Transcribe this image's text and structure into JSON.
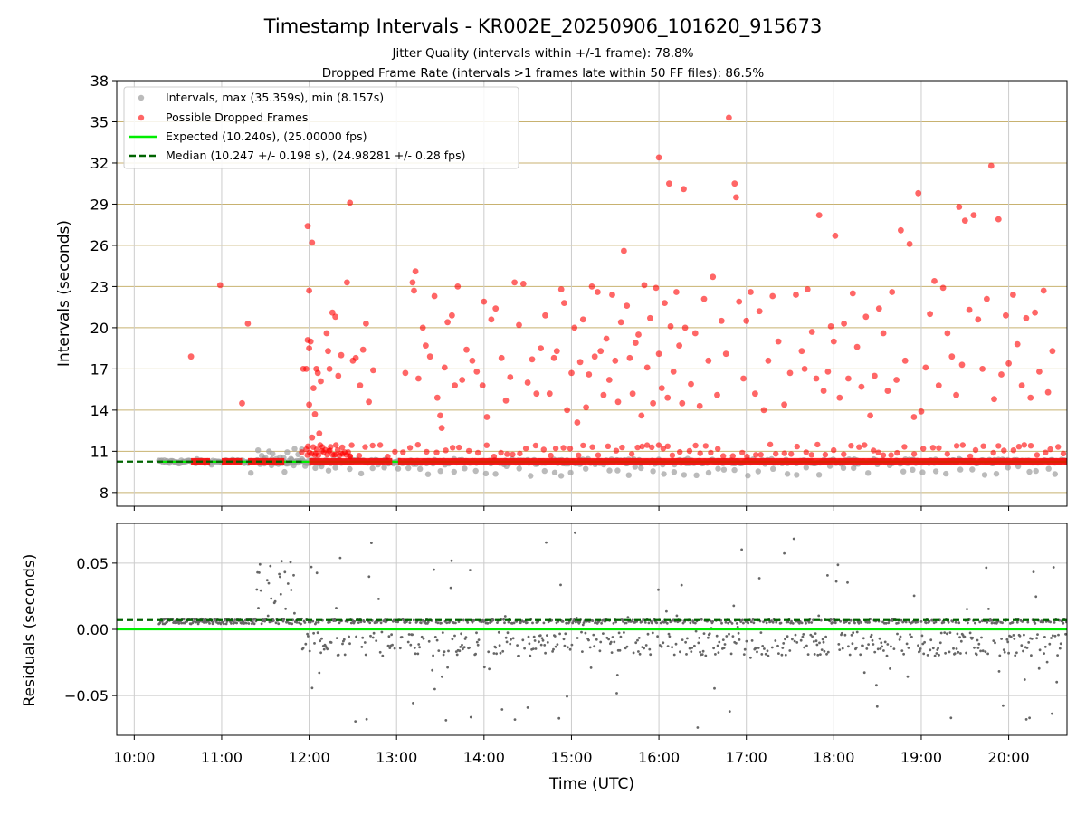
{
  "title": "Timestamp Intervals - KR002E_20250906_101620_915673",
  "subtitle_1": "Jitter Quality (intervals within +/-1 frame): 78.8%",
  "subtitle_2": "Dropped Frame Rate (intervals >1 frames late within 50 FF files): 86.5%",
  "colors": {
    "interval_points": "#9e9e9e",
    "dropped_points": "#ff0000",
    "expected_line": "#00ee00",
    "median_line": "#006400",
    "residual_points": "#666666",
    "top_grid": "#c8b270",
    "bottom_grid": "#cccccc"
  },
  "chart_data": [
    {
      "type": "scatter",
      "panel": "intervals",
      "ylabel": "Intervals (seconds)",
      "ylim": [
        7,
        38
      ],
      "xlim": [
        "09:48",
        "20:40"
      ],
      "yticks": [
        8,
        11,
        14,
        17,
        20,
        23,
        26,
        29,
        32,
        35,
        38
      ],
      "grid": "horizontal",
      "legend": {
        "placement": "top-left",
        "entries": [
          {
            "label": "Intervals, max (35.359s), min (8.157s)",
            "kind": "marker",
            "color_key": "interval_points"
          },
          {
            "label": "Possible Dropped Frames",
            "kind": "marker",
            "color_key": "dropped_points"
          },
          {
            "label": "Expected (10.240s), (25.00000 fps)",
            "kind": "line",
            "color_key": "expected_line"
          },
          {
            "label": "Median (10.247 +/- 0.198 s), (24.98281 +/- 0.28 fps)",
            "kind": "dashed",
            "color_key": "median_line"
          }
        ]
      },
      "expected": 10.24,
      "median": 10.247,
      "series": [
        {
          "name": "Possible Dropped Frames",
          "points": [
            [
              "10:39",
              17.9
            ],
            [
              "10:59",
              23.1
            ],
            [
              "11:14",
              14.5
            ],
            [
              "11:18",
              20.3
            ],
            [
              "11:56",
              17.0
            ],
            [
              "11:58",
              17.0
            ],
            [
              "11:59",
              27.4
            ],
            [
              "12:00",
              22.7
            ],
            [
              "12:01",
              19.0
            ],
            [
              "12:02",
              26.2
            ],
            [
              "12:00",
              18.5
            ],
            [
              "11:59",
              19.1
            ],
            [
              "12:03",
              15.6
            ],
            [
              "12:04",
              13.7
            ],
            [
              "12:05",
              17.0
            ],
            [
              "12:06",
              16.7
            ],
            [
              "12:08",
              16.1
            ],
            [
              "12:12",
              19.6
            ],
            [
              "12:13",
              18.3
            ],
            [
              "12:14",
              17.0
            ],
            [
              "12:16",
              21.1
            ],
            [
              "12:18",
              20.8
            ],
            [
              "12:20",
              16.5
            ],
            [
              "12:22",
              18.0
            ],
            [
              "12:26",
              23.3
            ],
            [
              "12:28",
              29.1
            ],
            [
              "12:30",
              17.6
            ],
            [
              "12:32",
              17.8
            ],
            [
              "12:35",
              15.8
            ],
            [
              "12:37",
              18.4
            ],
            [
              "12:39",
              20.3
            ],
            [
              "12:41",
              14.6
            ],
            [
              "12:44",
              16.9
            ],
            [
              "12:00",
              14.4
            ],
            [
              "12:02",
              12.0
            ],
            [
              "12:07",
              12.3
            ],
            [
              "13:06",
              16.7
            ],
            [
              "13:11",
              23.3
            ],
            [
              "13:12",
              22.7
            ],
            [
              "13:13",
              24.1
            ],
            [
              "13:15",
              16.3
            ],
            [
              "13:18",
              20.0
            ],
            [
              "13:20",
              18.7
            ],
            [
              "13:23",
              17.9
            ],
            [
              "13:26",
              22.3
            ],
            [
              "13:28",
              14.9
            ],
            [
              "13:30",
              13.6
            ],
            [
              "13:31",
              12.7
            ],
            [
              "13:33",
              17.1
            ],
            [
              "13:35",
              20.4
            ],
            [
              "13:38",
              20.9
            ],
            [
              "13:40",
              15.8
            ],
            [
              "13:42",
              23.0
            ],
            [
              "13:45",
              16.2
            ],
            [
              "13:48",
              18.4
            ],
            [
              "13:52",
              17.6
            ],
            [
              "13:55",
              16.8
            ],
            [
              "13:59",
              15.8
            ],
            [
              "14:00",
              21.9
            ],
            [
              "14:02",
              13.5
            ],
            [
              "14:05",
              20.6
            ],
            [
              "14:08",
              21.4
            ],
            [
              "14:12",
              17.8
            ],
            [
              "14:15",
              14.7
            ],
            [
              "14:18",
              16.4
            ],
            [
              "14:21",
              23.3
            ],
            [
              "14:24",
              20.2
            ],
            [
              "14:27",
              23.2
            ],
            [
              "14:30",
              16.0
            ],
            [
              "14:33",
              17.7
            ],
            [
              "14:36",
              15.2
            ],
            [
              "14:39",
              18.5
            ],
            [
              "14:42",
              20.9
            ],
            [
              "14:45",
              15.2
            ],
            [
              "14:48",
              17.8
            ],
            [
              "14:50",
              18.3
            ],
            [
              "14:53",
              22.8
            ],
            [
              "14:55",
              21.8
            ],
            [
              "14:57",
              14.0
            ],
            [
              "15:00",
              16.7
            ],
            [
              "15:02",
              20.0
            ],
            [
              "15:04",
              13.1
            ],
            [
              "15:06",
              17.5
            ],
            [
              "15:08",
              20.6
            ],
            [
              "15:10",
              14.2
            ],
            [
              "15:12",
              16.6
            ],
            [
              "15:14",
              23.0
            ],
            [
              "15:16",
              17.9
            ],
            [
              "15:18",
              22.6
            ],
            [
              "15:20",
              18.3
            ],
            [
              "15:22",
              15.1
            ],
            [
              "15:24",
              19.2
            ],
            [
              "15:26",
              16.2
            ],
            [
              "15:28",
              22.4
            ],
            [
              "15:30",
              17.6
            ],
            [
              "15:32",
              14.6
            ],
            [
              "15:34",
              20.4
            ],
            [
              "15:36",
              25.6
            ],
            [
              "15:38",
              21.6
            ],
            [
              "15:40",
              17.8
            ],
            [
              "15:42",
              15.2
            ],
            [
              "15:44",
              18.9
            ],
            [
              "15:46",
              19.5
            ],
            [
              "15:48",
              13.6
            ],
            [
              "15:50",
              23.1
            ],
            [
              "15:52",
              17.1
            ],
            [
              "15:54",
              20.7
            ],
            [
              "15:56",
              14.5
            ],
            [
              "15:58",
              22.9
            ],
            [
              "16:00",
              18.1
            ],
            [
              "16:02",
              15.6
            ],
            [
              "16:04",
              21.8
            ],
            [
              "16:06",
              14.9
            ],
            [
              "16:08",
              20.1
            ],
            [
              "16:10",
              16.8
            ],
            [
              "16:12",
              22.6
            ],
            [
              "16:14",
              18.7
            ],
            [
              "16:16",
              14.5
            ],
            [
              "16:18",
              20.0
            ],
            [
              "16:00",
              32.4
            ],
            [
              "16:07",
              30.5
            ],
            [
              "16:17",
              30.1
            ],
            [
              "16:22",
              15.9
            ],
            [
              "16:25",
              19.6
            ],
            [
              "16:28",
              14.3
            ],
            [
              "16:31",
              22.1
            ],
            [
              "16:34",
              17.6
            ],
            [
              "16:37",
              23.7
            ],
            [
              "16:40",
              15.1
            ],
            [
              "16:43",
              20.5
            ],
            [
              "16:46",
              18.1
            ],
            [
              "16:48",
              35.3
            ],
            [
              "16:52",
              30.5
            ],
            [
              "16:53",
              29.5
            ],
            [
              "16:55",
              21.9
            ],
            [
              "16:58",
              16.3
            ],
            [
              "17:00",
              20.5
            ],
            [
              "17:03",
              22.6
            ],
            [
              "17:06",
              15.2
            ],
            [
              "17:09",
              21.2
            ],
            [
              "17:12",
              14.0
            ],
            [
              "17:15",
              17.6
            ],
            [
              "17:18",
              22.3
            ],
            [
              "17:22",
              19.0
            ],
            [
              "17:26",
              14.4
            ],
            [
              "17:30",
              16.7
            ],
            [
              "17:34",
              22.4
            ],
            [
              "17:38",
              18.3
            ],
            [
              "17:40",
              17.0
            ],
            [
              "17:42",
              22.8
            ],
            [
              "17:45",
              19.7
            ],
            [
              "17:48",
              16.3
            ],
            [
              "17:50",
              28.2
            ],
            [
              "17:53",
              15.4
            ],
            [
              "17:56",
              16.8
            ],
            [
              "17:58",
              20.1
            ],
            [
              "18:00",
              19.0
            ],
            [
              "18:01",
              26.7
            ],
            [
              "18:04",
              14.9
            ],
            [
              "18:07",
              20.3
            ],
            [
              "18:10",
              16.3
            ],
            [
              "18:13",
              22.5
            ],
            [
              "18:16",
              18.6
            ],
            [
              "18:19",
              15.7
            ],
            [
              "18:22",
              20.8
            ],
            [
              "18:25",
              13.6
            ],
            [
              "18:28",
              16.5
            ],
            [
              "18:31",
              21.4
            ],
            [
              "18:34",
              19.6
            ],
            [
              "18:37",
              15.4
            ],
            [
              "18:40",
              22.6
            ],
            [
              "18:43",
              16.2
            ],
            [
              "18:46",
              27.1
            ],
            [
              "18:49",
              17.6
            ],
            [
              "18:52",
              26.1
            ],
            [
              "18:55",
              13.5
            ],
            [
              "18:58",
              29.8
            ],
            [
              "19:00",
              13.9
            ],
            [
              "19:03",
              17.1
            ],
            [
              "19:06",
              21.0
            ],
            [
              "19:09",
              23.4
            ],
            [
              "19:12",
              15.8
            ],
            [
              "19:15",
              22.9
            ],
            [
              "19:18",
              19.6
            ],
            [
              "19:21",
              17.9
            ],
            [
              "19:24",
              15.1
            ],
            [
              "19:26",
              28.8
            ],
            [
              "19:28",
              17.3
            ],
            [
              "19:30",
              27.8
            ],
            [
              "19:33",
              21.3
            ],
            [
              "19:36",
              28.2
            ],
            [
              "19:39",
              20.6
            ],
            [
              "19:42",
              17.0
            ],
            [
              "19:45",
              22.1
            ],
            [
              "19:48",
              31.8
            ],
            [
              "19:50",
              14.8
            ],
            [
              "19:53",
              27.9
            ],
            [
              "19:55",
              16.6
            ],
            [
              "19:58",
              20.9
            ],
            [
              "20:00",
              17.4
            ],
            [
              "20:03",
              22.4
            ],
            [
              "20:06",
              18.8
            ],
            [
              "20:09",
              15.8
            ],
            [
              "20:12",
              20.7
            ],
            [
              "20:15",
              14.9
            ],
            [
              "20:18",
              21.1
            ],
            [
              "20:21",
              16.8
            ],
            [
              "20:24",
              22.7
            ],
            [
              "20:27",
              15.3
            ],
            [
              "20:30",
              18.3
            ]
          ]
        }
      ]
    },
    {
      "type": "scatter",
      "panel": "residuals",
      "ylabel": "Residuals (seconds)",
      "xlabel": "Time (UTC)",
      "ylim": [
        -0.08,
        0.08
      ],
      "xlim": [
        "09:48",
        "20:40"
      ],
      "yticks": [
        -0.05,
        0.0,
        0.05
      ],
      "ytick_labels": [
        "−0.05",
        "0.00",
        "0.05"
      ],
      "xticks": [
        "10:00",
        "11:00",
        "12:00",
        "13:00",
        "14:00",
        "15:00",
        "16:00",
        "17:00",
        "18:00",
        "19:00",
        "20:00"
      ],
      "grid": "both",
      "expected": 0.0,
      "median": 0.007
    }
  ]
}
